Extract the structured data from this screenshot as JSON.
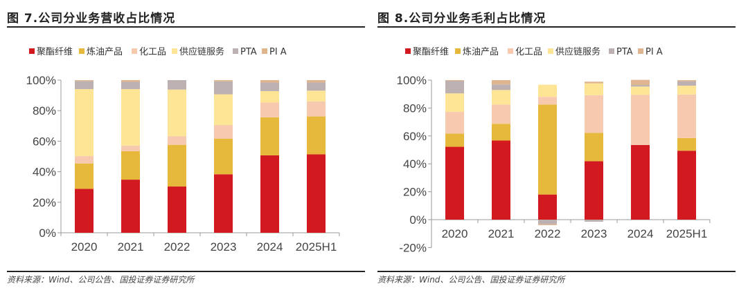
{
  "legend": {
    "items": [
      {
        "name": "聚酯纤维",
        "color": "#d1191f"
      },
      {
        "name": "炼油产品",
        "color": "#e6b83b"
      },
      {
        "name": "化工品",
        "color": "#f7cab0"
      },
      {
        "name": "供应链服务",
        "color": "#fee596"
      },
      {
        "name": "PTA",
        "color": "#bcb0b0"
      },
      {
        "name": "PI A",
        "color": "#dfb590"
      }
    ]
  },
  "source_text": "资料来源：Wind、公司公告、国投证券证券研究所",
  "chart_data": [
    {
      "type": "bar",
      "stacked": true,
      "title": "图 7.公司分业务营收占比情况",
      "xlabel": "",
      "ylabel": "",
      "categories": [
        "2020",
        "2021",
        "2022",
        "2023",
        "2024",
        "2025H1"
      ],
      "ylim": [
        0,
        100
      ],
      "yticks": [
        "0%",
        "20%",
        "40%",
        "60%",
        "80%",
        "100%"
      ],
      "ytick_values": [
        0,
        20,
        40,
        60,
        80,
        100
      ],
      "legend_position": "top",
      "grid": false,
      "series": [
        {
          "name": "聚酯纤维",
          "values": [
            28.8,
            34.8,
            30.3,
            38.3,
            50.7,
            51.4
          ]
        },
        {
          "name": "炼油产品",
          "values": [
            16.6,
            18.7,
            27.3,
            23.4,
            24.9,
            24.8
          ]
        },
        {
          "name": "化工品",
          "values": [
            4.8,
            3.6,
            5.7,
            8.9,
            9.7,
            9.8
          ]
        },
        {
          "name": "供应链服务",
          "values": [
            43.9,
            37.0,
            30.5,
            20.1,
            7.5,
            7.1
          ]
        },
        {
          "name": "PTA",
          "values": [
            5.3,
            4.8,
            6.2,
            8.5,
            5.6,
            5.3
          ]
        },
        {
          "name": "PI A",
          "values": [
            0.6,
            1.1,
            0.0,
            0.8,
            1.6,
            1.6
          ]
        }
      ]
    },
    {
      "type": "bar",
      "stacked": true,
      "title": "图 8.公司分业务毛利占比情况",
      "xlabel": "",
      "ylabel": "",
      "categories": [
        "2020",
        "2021",
        "2022",
        "2023",
        "2024",
        "2025H1"
      ],
      "ylim": [
        -20,
        100
      ],
      "yticks": [
        "-20%",
        "0%",
        "20%",
        "40%",
        "60%",
        "80%",
        "100%"
      ],
      "ytick_values": [
        -20,
        0,
        20,
        40,
        60,
        80,
        100
      ],
      "legend_position": "top",
      "grid": false,
      "series": [
        {
          "name": "聚酯纤维",
          "values": [
            52.2,
            56.7,
            18.0,
            41.9,
            53.5,
            49.4
          ]
        },
        {
          "name": "炼油产品",
          "values": [
            9.5,
            12.0,
            64.5,
            20.3,
            0.0,
            9.1
          ]
        },
        {
          "name": "化工品",
          "values": [
            15.5,
            13.8,
            5.5,
            27.0,
            36.0,
            31.2
          ]
        },
        {
          "name": "供应链服务",
          "values": [
            13.3,
            10.4,
            8.7,
            8.5,
            5.9,
            6.3
          ]
        },
        {
          "name": "PTA",
          "values": [
            9.0,
            4.0,
            -3.3,
            -1.5,
            1.1,
            3.2
          ]
        },
        {
          "name": "PI A",
          "values": [
            0.5,
            3.1,
            -0.7,
            1.2,
            3.7,
            0.8
          ]
        }
      ]
    }
  ]
}
